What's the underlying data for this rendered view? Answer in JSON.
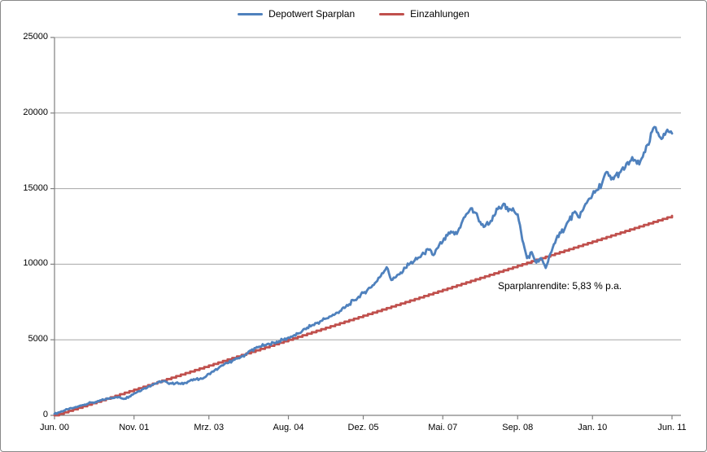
{
  "chart": {
    "legend_items": [
      {
        "label": "Depotwert Sparplan",
        "color": "#4F81BD"
      },
      {
        "label": "Einzahlungen",
        "color": "#C0504D"
      }
    ],
    "annotation_text": "Sparplanrendite: 5,83 % p.a.",
    "y_axis_ticks": [
      "0",
      "5000",
      "10000",
      "15000",
      "20000",
      "25000"
    ],
    "x_axis_ticks": [
      "Jun. 00",
      "Nov. 01",
      "Mrz. 03",
      "Aug. 04",
      "Dez. 05",
      "Mai. 07",
      "Sep. 08",
      "Jan. 10",
      "Jun. 11"
    ],
    "colors": {
      "series_blue": "#4F81BD",
      "series_red": "#C0504D",
      "gridline": "#A6A6A6",
      "axis": "#808080",
      "frame_border": "#898989"
    }
  },
  "chart_data": {
    "type": "line",
    "title": "",
    "xlabel": "",
    "ylabel": "",
    "ylim": [
      0,
      25000
    ],
    "grid": "horizontal",
    "legend_position": "top-center",
    "x_unit": "months since Jun 2000 (0 = Jun. 00, 132 = Jun. 11)",
    "x_tick_labels": [
      "Jun. 00",
      "Nov. 01",
      "Mrz. 03",
      "Aug. 04",
      "Dez. 05",
      "Mai. 07",
      "Sep. 08",
      "Jan. 10",
      "Jun. 11"
    ],
    "x_tick_months": [
      0,
      17,
      33,
      50,
      66,
      83,
      99,
      115,
      132
    ],
    "series": [
      {
        "name": "Depotwert Sparplan",
        "color": "#4F81BD",
        "style": "noisy-line",
        "values": [
          100,
          200,
          310,
          400,
          490,
          580,
          680,
          760,
          850,
          880,
          1000,
          1080,
          1150,
          1200,
          1180,
          1100,
          1250,
          1450,
          1600,
          1750,
          1900,
          2050,
          2150,
          2250,
          2200,
          2100,
          2150,
          2080,
          2150,
          2300,
          2350,
          2400,
          2500,
          2750,
          2900,
          3100,
          3300,
          3450,
          3600,
          3750,
          3900,
          4050,
          4300,
          4450,
          4550,
          4650,
          4700,
          4800,
          4900,
          5000,
          5150,
          5250,
          5400,
          5600,
          5800,
          5950,
          6100,
          6250,
          6400,
          6550,
          6700,
          6900,
          7100,
          7350,
          7600,
          7850,
          8100,
          8350,
          8600,
          8900,
          9400,
          9800,
          8950,
          9150,
          9450,
          9750,
          10050,
          10250,
          10450,
          10700,
          10950,
          10600,
          11100,
          11500,
          11900,
          12100,
          12000,
          12700,
          13300,
          13700,
          13400,
          12800,
          12500,
          12700,
          13200,
          13800,
          14000,
          13500,
          13700,
          13300,
          11600,
          10400,
          10800,
          10100,
          10400,
          9750,
          10700,
          11400,
          12100,
          12300,
          12900,
          13400,
          13100,
          13600,
          14200,
          14600,
          14900,
          15300,
          16100,
          15600,
          15900,
          16100,
          16400,
          16800,
          16900,
          16600,
          17400,
          17900,
          19000,
          18700,
          18350,
          18900,
          18650
        ]
      },
      {
        "name": "Einzahlungen",
        "color": "#C0504D",
        "style": "step-line",
        "description": "cumulative deposits, 100 per month",
        "monthly_amount": 100,
        "months": 132,
        "start_value": 0,
        "final_value": 13200
      }
    ],
    "annotation": {
      "text": "Sparplanrendite: 5,83 % p.a.",
      "x_month": 95,
      "y_value": 8500
    }
  }
}
